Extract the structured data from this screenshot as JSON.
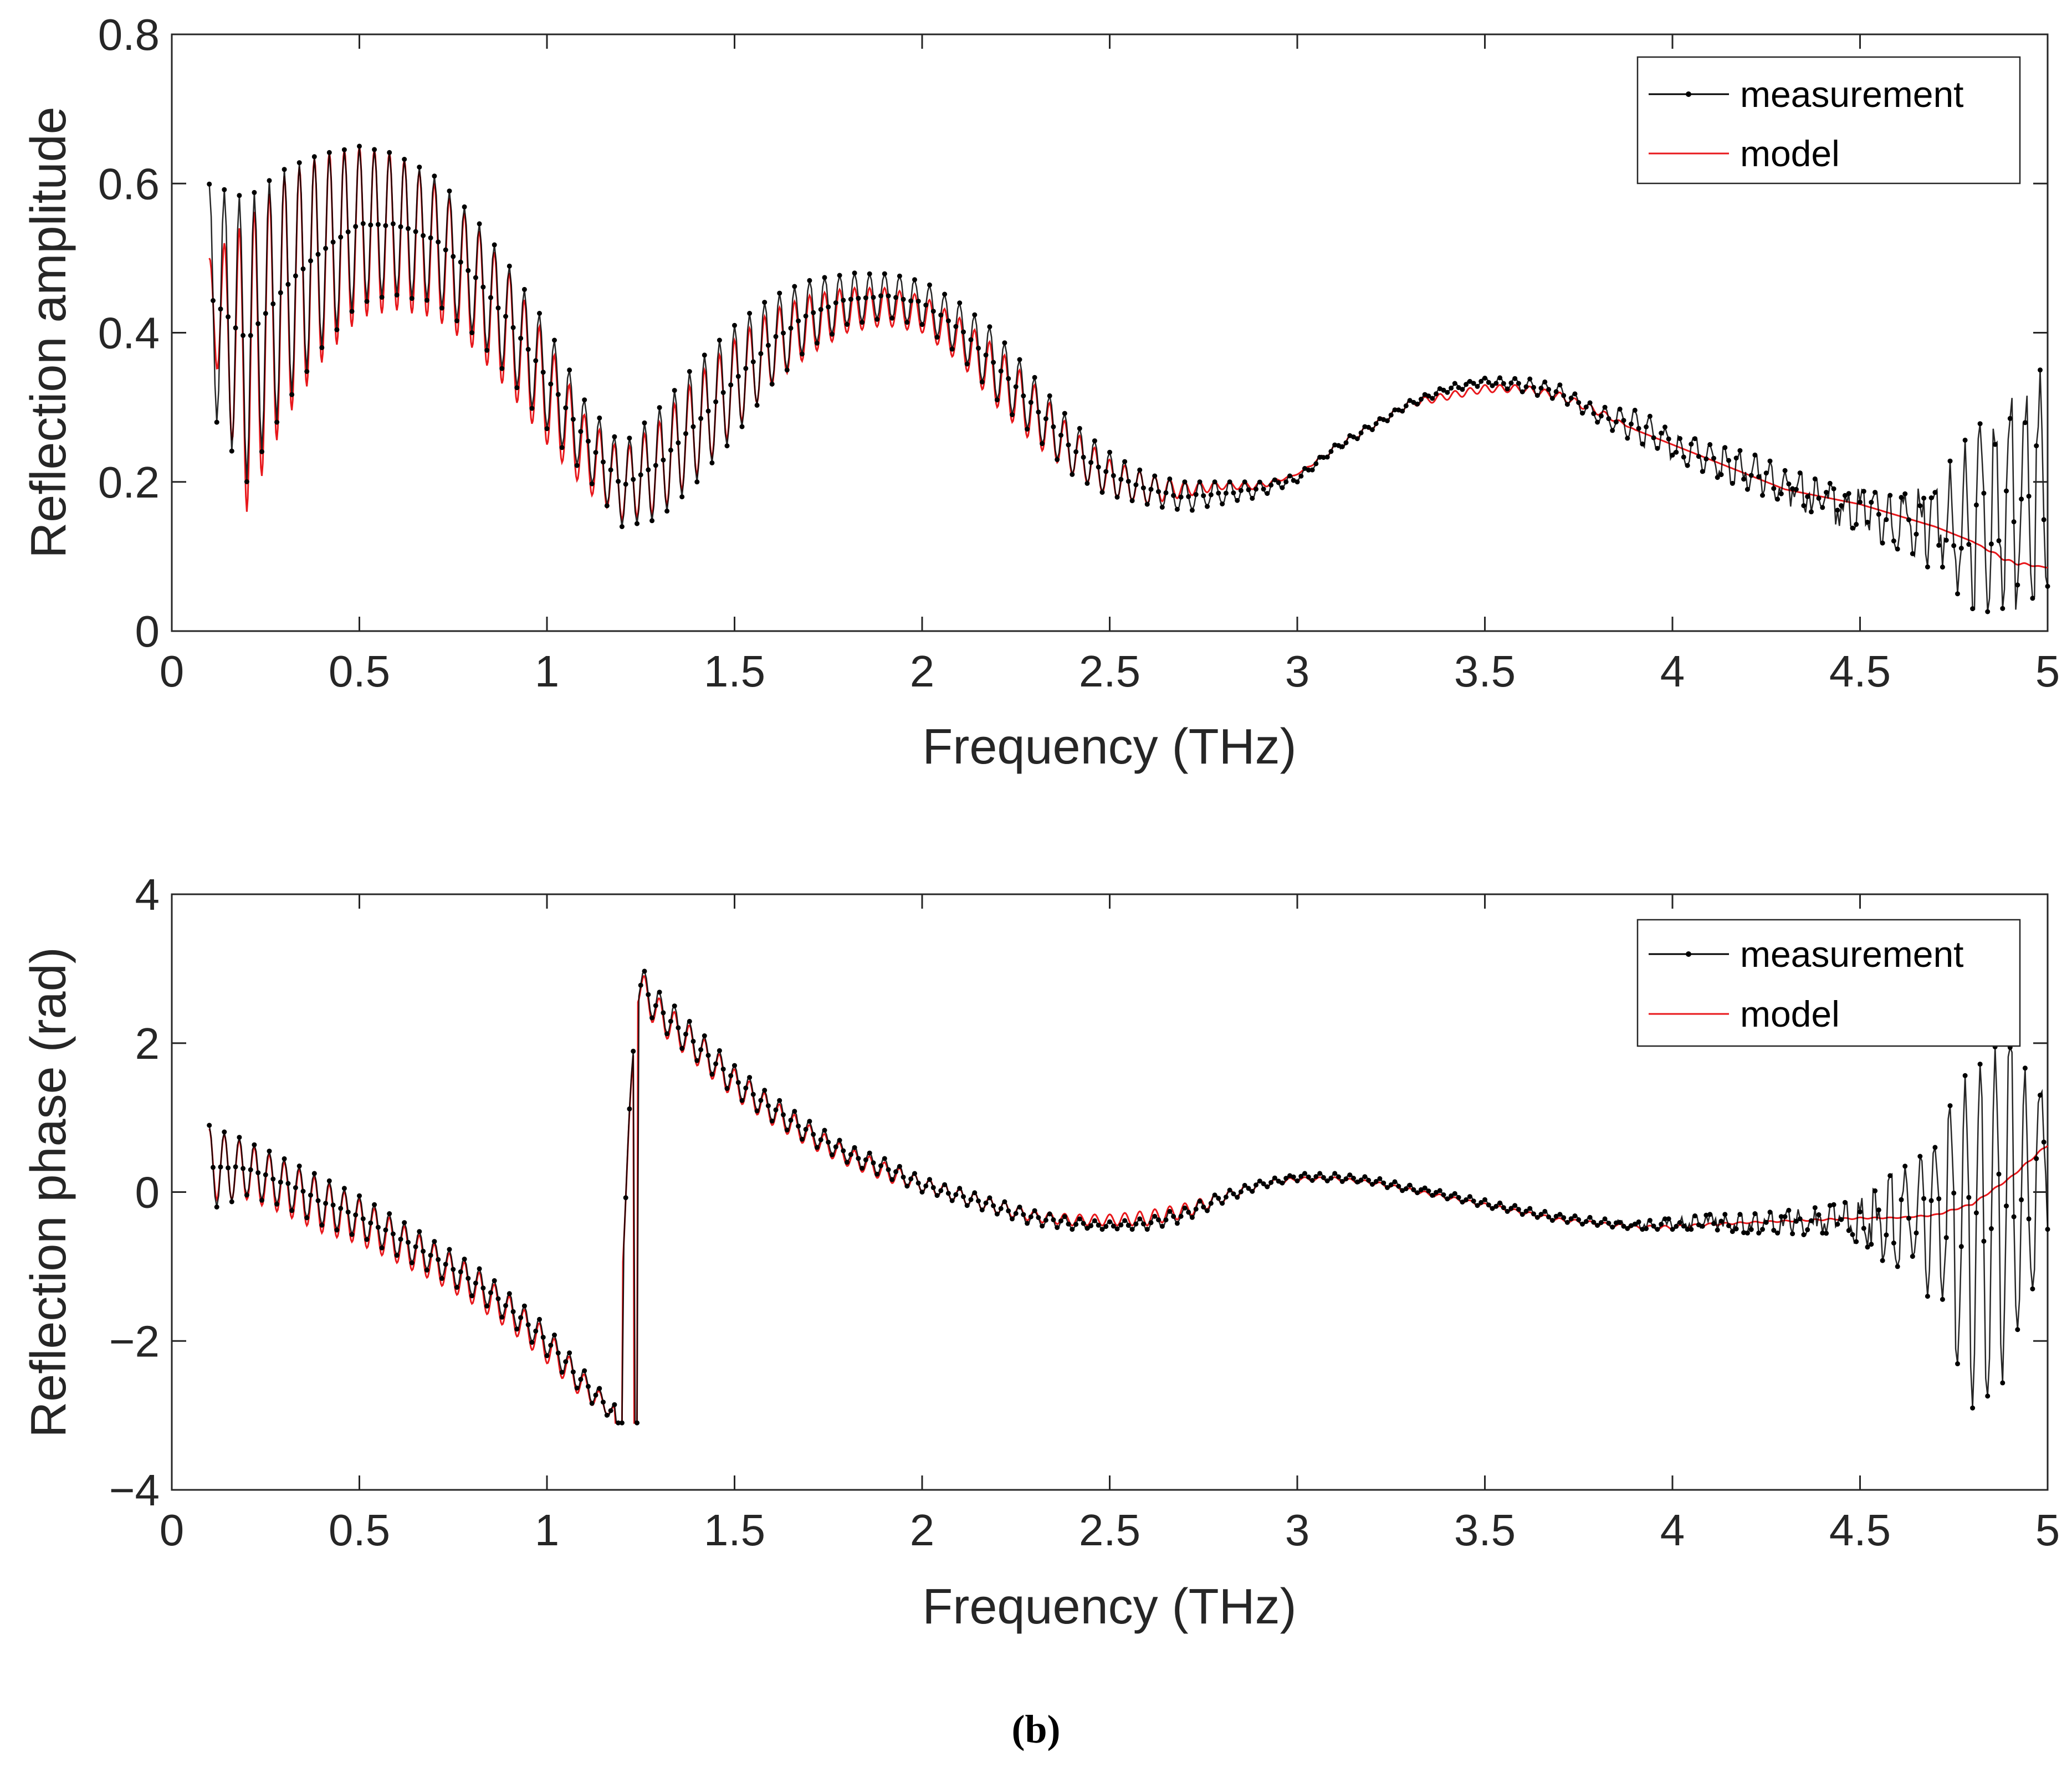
{
  "figure_label": "(b)",
  "colors": {
    "measurement": "#000000",
    "model": "#e8171b"
  },
  "chart_data": [
    {
      "type": "line",
      "title": "",
      "xlabel": "Frequency (THz)",
      "ylabel": "Reflection amplitude",
      "xlim": [
        0,
        5
      ],
      "ylim": [
        0,
        0.8
      ],
      "xticks": [
        0,
        0.5,
        1,
        1.5,
        2,
        2.5,
        3,
        3.5,
        4,
        4.5,
        5
      ],
      "xtick_labels": [
        "0",
        "0.5",
        "1",
        "1.5",
        "2",
        "2.5",
        "3",
        "3.5",
        "4",
        "4.5",
        "5"
      ],
      "yticks": [
        0,
        0.2,
        0.4,
        0.6,
        0.8
      ],
      "ytick_labels": [
        "0",
        "0.2",
        "0.4",
        "0.6",
        "0.8"
      ],
      "grid": false,
      "legend": {
        "placement": "top-right",
        "entries": [
          "measurement",
          "model"
        ]
      },
      "ripple_period_thz": 0.04,
      "series": [
        {
          "name": "measurement",
          "style": "black line with dot markers",
          "envelope_x": [
            0.1,
            0.2,
            0.3,
            0.4,
            0.5,
            0.6,
            0.7,
            0.8,
            0.9,
            1.0,
            1.1,
            1.2,
            1.3,
            1.4,
            1.5,
            1.6,
            1.7,
            1.8,
            1.9,
            2.0,
            2.1,
            2.2,
            2.3,
            2.4,
            2.5,
            2.6,
            2.7,
            2.8,
            2.9,
            3.0,
            3.1,
            3.2,
            3.3,
            3.4,
            3.5,
            3.6,
            3.7,
            3.8,
            3.9,
            4.0,
            4.1,
            4.2,
            4.3,
            4.4,
            4.5,
            4.6,
            4.7,
            4.8,
            4.9,
            5.0
          ],
          "upper": [
            0.6,
            0.58,
            0.62,
            0.64,
            0.65,
            0.64,
            0.61,
            0.56,
            0.49,
            0.41,
            0.31,
            0.25,
            0.3,
            0.36,
            0.41,
            0.45,
            0.47,
            0.48,
            0.48,
            0.47,
            0.44,
            0.4,
            0.34,
            0.28,
            0.24,
            0.21,
            0.2,
            0.2,
            0.2,
            0.21,
            0.25,
            0.28,
            0.31,
            0.33,
            0.34,
            0.34,
            0.33,
            0.3,
            0.3,
            0.27,
            0.25,
            0.24,
            0.22,
            0.2,
            0.19,
            0.18,
            0.2,
            0.27,
            0.31,
            0.36
          ],
          "lower": [
            0.3,
            0.2,
            0.3,
            0.38,
            0.44,
            0.45,
            0.44,
            0.4,
            0.34,
            0.27,
            0.21,
            0.14,
            0.15,
            0.2,
            0.26,
            0.33,
            0.38,
            0.41,
            0.42,
            0.41,
            0.37,
            0.31,
            0.26,
            0.21,
            0.18,
            0.17,
            0.16,
            0.17,
            0.18,
            0.2,
            0.24,
            0.27,
            0.3,
            0.32,
            0.33,
            0.32,
            0.31,
            0.28,
            0.25,
            0.23,
            0.21,
            0.19,
            0.17,
            0.15,
            0.13,
            0.11,
            0.08,
            0.03,
            0.02,
            0.06
          ]
        },
        {
          "name": "model",
          "style": "red thin line",
          "envelope_x": [
            0.1,
            0.2,
            0.3,
            0.4,
            0.5,
            0.6,
            0.7,
            0.8,
            0.9,
            1.0,
            1.1,
            1.2,
            1.3,
            1.4,
            1.5,
            1.6,
            1.7,
            1.8,
            1.9,
            2.0,
            2.1,
            2.2,
            2.3,
            2.4,
            2.5,
            2.6,
            2.7,
            2.8,
            2.9,
            3.0,
            3.1,
            3.2,
            3.3,
            3.4,
            3.5,
            3.6,
            3.7,
            3.8,
            3.9,
            4.0,
            4.1,
            4.2,
            4.3,
            4.4,
            4.5,
            4.6,
            4.7,
            4.8,
            4.9,
            5.0
          ],
          "upper": [
            0.5,
            0.55,
            0.61,
            0.64,
            0.65,
            0.64,
            0.6,
            0.55,
            0.48,
            0.39,
            0.29,
            0.24,
            0.28,
            0.34,
            0.39,
            0.43,
            0.45,
            0.46,
            0.46,
            0.45,
            0.42,
            0.38,
            0.33,
            0.27,
            0.23,
            0.21,
            0.2,
            0.2,
            0.2,
            0.21,
            0.25,
            0.28,
            0.31,
            0.32,
            0.33,
            0.33,
            0.32,
            0.3,
            0.27,
            0.25,
            0.23,
            0.21,
            0.19,
            0.18,
            0.17,
            0.155,
            0.14,
            0.12,
            0.095,
            0.085
          ],
          "lower": [
            0.4,
            0.16,
            0.28,
            0.36,
            0.42,
            0.43,
            0.42,
            0.38,
            0.32,
            0.25,
            0.19,
            0.15,
            0.16,
            0.21,
            0.27,
            0.33,
            0.37,
            0.4,
            0.41,
            0.4,
            0.36,
            0.3,
            0.25,
            0.21,
            0.18,
            0.17,
            0.18,
            0.19,
            0.19,
            0.21,
            0.24,
            0.27,
            0.3,
            0.31,
            0.32,
            0.32,
            0.31,
            0.29,
            0.27,
            0.25,
            0.23,
            0.21,
            0.19,
            0.18,
            0.17,
            0.155,
            0.14,
            0.12,
            0.09,
            0.085
          ]
        }
      ]
    },
    {
      "type": "line",
      "title": "",
      "xlabel": "Frequency (THz)",
      "ylabel": "Reflection phase (rad)",
      "xlim": [
        0,
        5
      ],
      "ylim": [
        -4,
        4
      ],
      "xticks": [
        0,
        0.5,
        1,
        1.5,
        2,
        2.5,
        3,
        3.5,
        4,
        4.5,
        5
      ],
      "xtick_labels": [
        "0",
        "0.5",
        "1",
        "1.5",
        "2",
        "2.5",
        "3",
        "3.5",
        "4",
        "4.5",
        "5"
      ],
      "yticks": [
        -4,
        -2,
        0,
        2,
        4
      ],
      "ytick_labels": [
        "−4",
        "−2",
        "0",
        "2",
        "4"
      ],
      "grid": false,
      "legend": {
        "placement": "top-right",
        "entries": [
          "measurement",
          "model"
        ]
      },
      "ripple_period_thz": 0.04,
      "phase_wrap": {
        "down_at": [
          1.18,
          1.23
        ],
        "up_at": [
          1.2,
          1.24
        ]
      },
      "series": [
        {
          "name": "measurement",
          "style": "black line with dot markers",
          "envelope_x": [
            0.1,
            0.2,
            0.3,
            0.4,
            0.5,
            0.6,
            0.7,
            0.8,
            0.9,
            1.0,
            1.1,
            1.18,
            1.24,
            1.3,
            1.4,
            1.5,
            1.6,
            1.7,
            1.8,
            1.9,
            2.0,
            2.1,
            2.2,
            2.3,
            2.4,
            2.5,
            2.6,
            2.7,
            2.8,
            2.9,
            3.0,
            3.1,
            3.2,
            3.3,
            3.4,
            3.5,
            3.6,
            3.7,
            3.8,
            3.9,
            4.0,
            4.1,
            4.2,
            4.3,
            4.4,
            4.5,
            4.6,
            4.7,
            4.8,
            4.9,
            5.0
          ],
          "upper": [
            0.9,
            0.7,
            0.45,
            0.2,
            -0.05,
            -0.35,
            -0.65,
            -0.95,
            -1.35,
            -1.8,
            -2.4,
            -2.85,
            3.1,
            2.7,
            2.2,
            1.7,
            1.3,
            0.95,
            0.65,
            0.45,
            0.2,
            0.05,
            -0.1,
            -0.25,
            -0.35,
            -0.4,
            -0.35,
            -0.2,
            0.0,
            0.15,
            0.25,
            0.25,
            0.2,
            0.1,
            0.0,
            -0.1,
            -0.2,
            -0.3,
            -0.35,
            -0.4,
            -0.35,
            -0.3,
            -0.3,
            -0.25,
            -0.2,
            -0.1,
            0.3,
            0.6,
            2.0,
            2.2,
            1.2
          ],
          "lower": [
            -0.25,
            -0.05,
            -0.2,
            -0.45,
            -0.6,
            -0.85,
            -1.1,
            -1.4,
            -1.75,
            -2.2,
            -2.75,
            -3.1,
            2.6,
            2.2,
            1.75,
            1.3,
            0.95,
            0.65,
            0.4,
            0.2,
            0.0,
            -0.15,
            -0.3,
            -0.45,
            -0.5,
            -0.5,
            -0.5,
            -0.4,
            -0.15,
            0.05,
            0.15,
            0.15,
            0.1,
            0.0,
            -0.1,
            -0.2,
            -0.3,
            -0.4,
            -0.45,
            -0.5,
            -0.5,
            -0.5,
            -0.55,
            -0.55,
            -0.6,
            -0.8,
            -1.0,
            -1.5,
            -2.9,
            -2.5,
            -0.5
          ]
        },
        {
          "name": "model",
          "style": "red thin line",
          "envelope_x": [
            0.1,
            0.2,
            0.3,
            0.4,
            0.5,
            0.6,
            0.7,
            0.8,
            0.9,
            1.0,
            1.1,
            1.18,
            1.24,
            1.3,
            1.4,
            1.5,
            1.6,
            1.7,
            1.8,
            1.9,
            2.0,
            2.1,
            2.2,
            2.3,
            2.4,
            2.5,
            2.6,
            2.7,
            2.8,
            2.9,
            3.0,
            3.1,
            3.2,
            3.3,
            3.4,
            3.5,
            3.6,
            3.7,
            3.8,
            3.9,
            4.0,
            4.1,
            4.2,
            4.3,
            4.4,
            4.5,
            4.6,
            4.7,
            4.8,
            4.9,
            5.0
          ],
          "upper": [
            0.85,
            0.65,
            0.4,
            0.15,
            -0.1,
            -0.4,
            -0.7,
            -1.0,
            -1.4,
            -1.85,
            -2.45,
            -2.9,
            3.05,
            2.6,
            2.15,
            1.65,
            1.25,
            0.9,
            0.6,
            0.4,
            0.2,
            0.05,
            -0.1,
            -0.25,
            -0.3,
            -0.3,
            -0.25,
            -0.15,
            0.0,
            0.15,
            0.2,
            0.2,
            0.15,
            0.05,
            -0.05,
            -0.15,
            -0.25,
            -0.35,
            -0.4,
            -0.45,
            -0.45,
            -0.42,
            -0.4,
            -0.38,
            -0.36,
            -0.34,
            -0.34,
            -0.3,
            -0.15,
            0.2,
            0.65
          ],
          "lower": [
            -0.1,
            -0.1,
            -0.3,
            -0.55,
            -0.7,
            -0.95,
            -1.2,
            -1.5,
            -1.85,
            -2.3,
            -2.8,
            -3.05,
            2.55,
            2.15,
            1.7,
            1.25,
            0.9,
            0.6,
            0.35,
            0.15,
            0.0,
            -0.15,
            -0.3,
            -0.4,
            -0.45,
            -0.45,
            -0.45,
            -0.35,
            -0.15,
            0.05,
            0.15,
            0.15,
            0.1,
            0.0,
            -0.1,
            -0.2,
            -0.3,
            -0.4,
            -0.45,
            -0.5,
            -0.5,
            -0.45,
            -0.42,
            -0.4,
            -0.38,
            -0.36,
            -0.35,
            -0.32,
            -0.17,
            0.18,
            0.62
          ]
        }
      ]
    }
  ]
}
